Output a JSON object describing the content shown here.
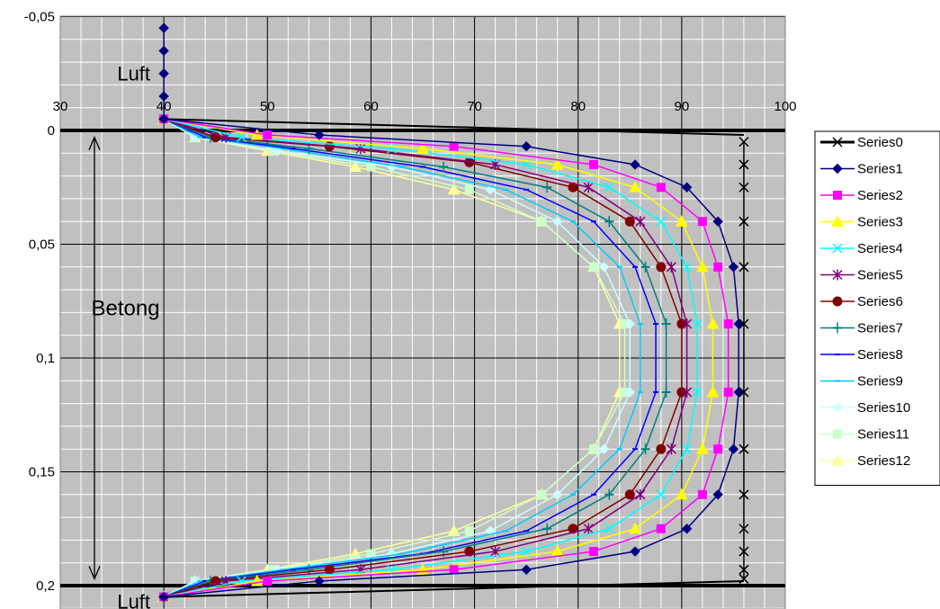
{
  "chart_data": {
    "type": "line",
    "title": "",
    "xlabel": "",
    "ylabel": "",
    "xlim": [
      30,
      100
    ],
    "ylim": [
      0.21,
      -0.05
    ],
    "x_ticks": [
      "30",
      "40",
      "50",
      "60",
      "70",
      "80",
      "90",
      "100"
    ],
    "y_ticks": [
      "-0,05",
      "0",
      "0,05",
      "0,1",
      "0,15",
      "0,2"
    ],
    "grid": true,
    "legend_position": "right",
    "annotations": [
      {
        "text": "Luft",
        "x": 35.5,
        "y": -0.025
      },
      {
        "text": "Betong",
        "x": 33,
        "y": 0.078
      },
      {
        "text": "Luft",
        "x": 35.5,
        "y": 0.207
      }
    ],
    "series": [
      {
        "name": "Series0",
        "color": "#000000",
        "marker": "x",
        "points": [
          [
            96,
            0.005
          ],
          [
            96,
            0.015
          ],
          [
            96,
            0.025
          ],
          [
            96,
            0.04
          ],
          [
            96,
            0.06
          ],
          [
            96,
            0.085
          ],
          [
            96,
            0.115
          ],
          [
            96,
            0.14
          ],
          [
            96,
            0.16
          ],
          [
            96,
            0.175
          ],
          [
            96,
            0.185
          ],
          [
            96,
            0.193
          ],
          [
            96,
            0.197
          ]
        ]
      },
      {
        "name": "Series1",
        "color": "#000080",
        "marker": "diamond",
        "points": [
          [
            40,
            -0.045
          ],
          [
            40,
            -0.035
          ],
          [
            40,
            -0.025
          ],
          [
            40,
            -0.015
          ],
          [
            40,
            -0.005
          ],
          [
            55,
            0.002
          ],
          [
            75,
            0.007
          ],
          [
            85.5,
            0.015
          ],
          [
            90.5,
            0.025
          ],
          [
            93.5,
            0.04
          ],
          [
            95,
            0.06
          ],
          [
            95.5,
            0.085
          ],
          [
            95.5,
            0.115
          ],
          [
            95,
            0.14
          ],
          [
            93.5,
            0.16
          ],
          [
            90.5,
            0.175
          ],
          [
            85.5,
            0.185
          ],
          [
            75,
            0.193
          ],
          [
            55,
            0.198
          ],
          [
            40,
            0.205
          ]
        ]
      },
      {
        "name": "Series2",
        "color": "#ff00ff",
        "marker": "square",
        "points": [
          [
            40,
            -0.005
          ],
          [
            50,
            0.002
          ],
          [
            68,
            0.007
          ],
          [
            81.5,
            0.015
          ],
          [
            88,
            0.025
          ],
          [
            92,
            0.04
          ],
          [
            93.5,
            0.06
          ],
          [
            94.5,
            0.085
          ],
          [
            94.5,
            0.115
          ],
          [
            93.5,
            0.14
          ],
          [
            92,
            0.16
          ],
          [
            88,
            0.175
          ],
          [
            81.5,
            0.185
          ],
          [
            68,
            0.193
          ],
          [
            50,
            0.198
          ],
          [
            40,
            0.205
          ]
        ]
      },
      {
        "name": "Series3",
        "color": "#ffff00",
        "marker": "triangle",
        "points": [
          [
            40,
            -0.005
          ],
          [
            49,
            0.002
          ],
          [
            65,
            0.008
          ],
          [
            78,
            0.015
          ],
          [
            85.5,
            0.025
          ],
          [
            90,
            0.04
          ],
          [
            92,
            0.06
          ],
          [
            93,
            0.085
          ],
          [
            93,
            0.115
          ],
          [
            92,
            0.14
          ],
          [
            90,
            0.16
          ],
          [
            85.5,
            0.175
          ],
          [
            78,
            0.185
          ],
          [
            65,
            0.193
          ],
          [
            49,
            0.198
          ],
          [
            40,
            0.205
          ]
        ]
      },
      {
        "name": "Series4",
        "color": "#00ffff",
        "marker": "x",
        "points": [
          [
            40,
            -0.005
          ],
          [
            47.5,
            0.003
          ],
          [
            62,
            0.008
          ],
          [
            75,
            0.015
          ],
          [
            83,
            0.025
          ],
          [
            88,
            0.04
          ],
          [
            90.5,
            0.06
          ],
          [
            91.5,
            0.085
          ],
          [
            91.5,
            0.115
          ],
          [
            90.5,
            0.14
          ],
          [
            88,
            0.16
          ],
          [
            83,
            0.175
          ],
          [
            75,
            0.185
          ],
          [
            62,
            0.193
          ],
          [
            47.5,
            0.198
          ],
          [
            40,
            0.205
          ]
        ]
      },
      {
        "name": "Series5",
        "color": "#800080",
        "marker": "asterisk",
        "points": [
          [
            40,
            -0.005
          ],
          [
            46,
            0.003
          ],
          [
            59,
            0.008
          ],
          [
            72,
            0.015
          ],
          [
            81,
            0.025
          ],
          [
            86,
            0.04
          ],
          [
            89,
            0.06
          ],
          [
            90.5,
            0.085
          ],
          [
            90.5,
            0.115
          ],
          [
            89,
            0.14
          ],
          [
            86,
            0.16
          ],
          [
            81,
            0.175
          ],
          [
            72,
            0.185
          ],
          [
            59,
            0.193
          ],
          [
            46,
            0.198
          ],
          [
            40,
            0.205
          ]
        ]
      },
      {
        "name": "Series6",
        "color": "#800000",
        "marker": "circle",
        "points": [
          [
            40,
            -0.005
          ],
          [
            45,
            0.003
          ],
          [
            56,
            0.007
          ],
          [
            69.5,
            0.014
          ],
          [
            79.5,
            0.025
          ],
          [
            85,
            0.04
          ],
          [
            88,
            0.06
          ],
          [
            90,
            0.085
          ],
          [
            90,
            0.115
          ],
          [
            88,
            0.14
          ],
          [
            85,
            0.16
          ],
          [
            79.5,
            0.175
          ],
          [
            69.5,
            0.185
          ],
          [
            56,
            0.193
          ],
          [
            45,
            0.198
          ],
          [
            40,
            0.205
          ]
        ]
      },
      {
        "name": "Series7",
        "color": "#008080",
        "marker": "plus",
        "points": [
          [
            40,
            -0.005
          ],
          [
            44.5,
            0.003
          ],
          [
            54,
            0.008
          ],
          [
            67,
            0.016
          ],
          [
            77,
            0.025
          ],
          [
            83,
            0.04
          ],
          [
            86.5,
            0.06
          ],
          [
            88.5,
            0.085
          ],
          [
            88.5,
            0.115
          ],
          [
            86.5,
            0.14
          ],
          [
            83,
            0.16
          ],
          [
            77,
            0.175
          ],
          [
            67,
            0.185
          ],
          [
            54,
            0.193
          ],
          [
            44.5,
            0.198
          ],
          [
            40,
            0.205
          ]
        ]
      },
      {
        "name": "Series8",
        "color": "#0000ff",
        "marker": "dash",
        "points": [
          [
            40,
            -0.005
          ],
          [
            44,
            0.003
          ],
          [
            52.5,
            0.008
          ],
          [
            65,
            0.016
          ],
          [
            75,
            0.026
          ],
          [
            81.5,
            0.04
          ],
          [
            85.5,
            0.06
          ],
          [
            87.5,
            0.085
          ],
          [
            87.5,
            0.115
          ],
          [
            85.5,
            0.14
          ],
          [
            81.5,
            0.16
          ],
          [
            75,
            0.176
          ],
          [
            65,
            0.186
          ],
          [
            52.5,
            0.193
          ],
          [
            44,
            0.198
          ],
          [
            40,
            0.205
          ]
        ]
      },
      {
        "name": "Series9",
        "color": "#00ccff",
        "marker": "dash",
        "points": [
          [
            40,
            -0.005
          ],
          [
            43.5,
            0.003
          ],
          [
            51.5,
            0.008
          ],
          [
            63,
            0.016
          ],
          [
            73,
            0.026
          ],
          [
            79.5,
            0.04
          ],
          [
            84,
            0.06
          ],
          [
            86,
            0.085
          ],
          [
            86,
            0.115
          ],
          [
            84,
            0.14
          ],
          [
            79.5,
            0.16
          ],
          [
            73,
            0.176
          ],
          [
            63,
            0.186
          ],
          [
            51.5,
            0.193
          ],
          [
            43.5,
            0.198
          ],
          [
            40,
            0.205
          ]
        ]
      },
      {
        "name": "Series10",
        "color": "#ccffff",
        "marker": "diamond",
        "points": [
          [
            40,
            -0.005
          ],
          [
            43,
            0.003
          ],
          [
            51,
            0.009
          ],
          [
            62,
            0.016
          ],
          [
            71.5,
            0.026
          ],
          [
            78,
            0.04
          ],
          [
            82.5,
            0.06
          ],
          [
            85,
            0.085
          ],
          [
            85,
            0.115
          ],
          [
            82.5,
            0.14
          ],
          [
            78,
            0.16
          ],
          [
            71.5,
            0.176
          ],
          [
            62,
            0.186
          ],
          [
            51,
            0.193
          ],
          [
            43,
            0.198
          ],
          [
            40,
            0.205
          ]
        ]
      },
      {
        "name": "Series11",
        "color": "#ccffcc",
        "marker": "square",
        "points": [
          [
            40,
            -0.005
          ],
          [
            43,
            0.003
          ],
          [
            50.5,
            0.009
          ],
          [
            60,
            0.016
          ],
          [
            69.5,
            0.026
          ],
          [
            76.5,
            0.04
          ],
          [
            81.5,
            0.06
          ],
          [
            84.5,
            0.085
          ],
          [
            84.5,
            0.115
          ],
          [
            81.5,
            0.14
          ],
          [
            76.5,
            0.16
          ],
          [
            69.5,
            0.176
          ],
          [
            60,
            0.186
          ],
          [
            50.5,
            0.193
          ],
          [
            43,
            0.198
          ],
          [
            40,
            0.205
          ]
        ]
      },
      {
        "name": "Series12",
        "color": "#ffff99",
        "marker": "triangle",
        "points": [
          [
            40,
            -0.005
          ],
          [
            43,
            0.003
          ],
          [
            50,
            0.009
          ],
          [
            58.5,
            0.016
          ],
          [
            68,
            0.026
          ],
          [
            76.5,
            0.04
          ],
          [
            81.5,
            0.06
          ],
          [
            84,
            0.085
          ],
          [
            84,
            0.115
          ],
          [
            81.5,
            0.14
          ],
          [
            76.5,
            0.16
          ],
          [
            68,
            0.176
          ],
          [
            58.5,
            0.186
          ],
          [
            50,
            0.193
          ],
          [
            43,
            0.198
          ],
          [
            40,
            0.205
          ]
        ]
      }
    ]
  }
}
